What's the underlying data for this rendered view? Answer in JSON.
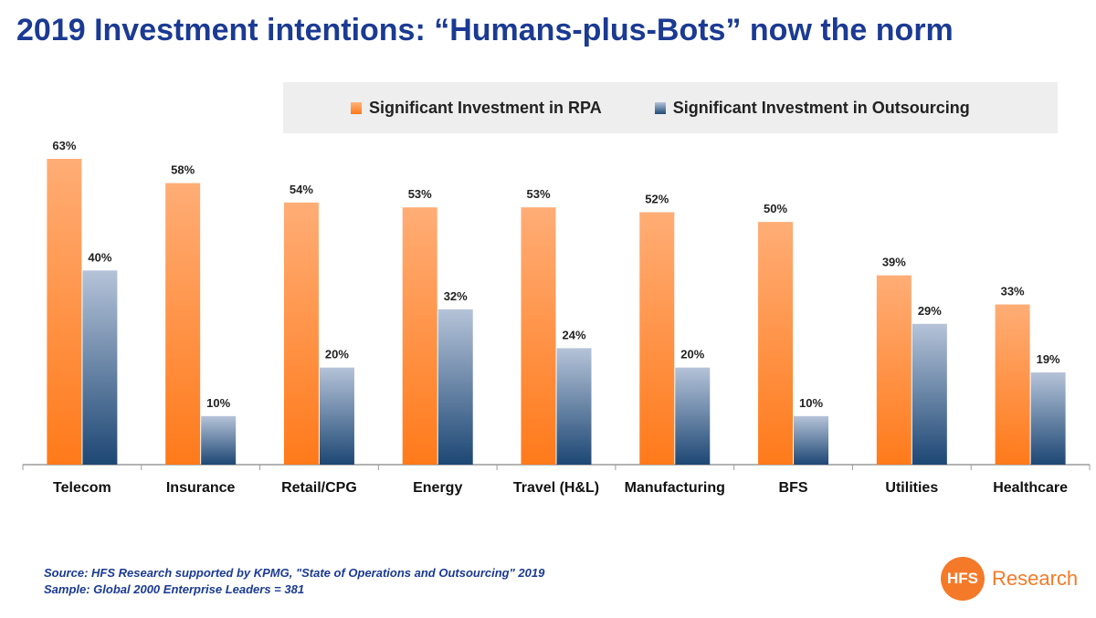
{
  "title": "2019 Investment intentions: “Humans-plus-Bots” now the norm",
  "legend": {
    "rpa": "Significant Investment in RPA",
    "outsourcing": "Significant Investment in Outsourcing"
  },
  "source": {
    "line1": "Source: HFS Research supported by KPMG, \"State of Operations and Outsourcing\" 2019",
    "line2": "Sample: Global 2000 Enterprise Leaders = 381"
  },
  "logo": {
    "mark": "HFS",
    "text": "Research"
  },
  "colors": {
    "rpa": "#ff8a33",
    "outsourcing": "#34597f",
    "title": "#1b3a93"
  },
  "chart_data": {
    "type": "bar",
    "title": "2019 Investment intentions: “Humans-plus-Bots” now the norm",
    "categories": [
      "Telecom",
      "Insurance",
      "Retail/CPG",
      "Energy",
      "Travel (H&L)",
      "Manufacturing",
      "BFS",
      "Utilities",
      "Healthcare"
    ],
    "series": [
      {
        "name": "Significant Investment in RPA",
        "values": [
          63,
          58,
          54,
          53,
          53,
          52,
          50,
          39,
          33
        ]
      },
      {
        "name": "Significant Investment in Outsourcing",
        "values": [
          40,
          10,
          20,
          32,
          24,
          20,
          10,
          29,
          19
        ]
      }
    ],
    "unit": "%",
    "ylim": [
      0,
      70
    ],
    "grid": false,
    "legend_position": "top"
  }
}
